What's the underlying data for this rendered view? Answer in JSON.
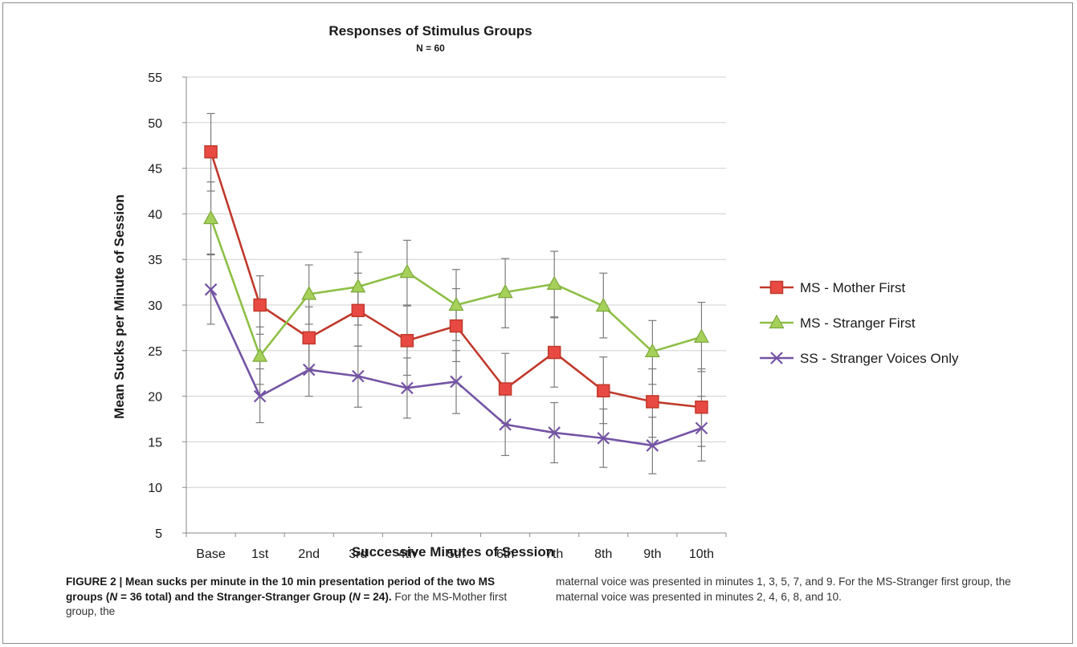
{
  "chart_data": {
    "type": "line",
    "title": "Responses of Stimulus Groups",
    "subtitle": "N = 60",
    "xlabel": "Successive Minutes of Session",
    "ylabel": "Mean Sucks per Minute of Session",
    "categories": [
      "Base",
      "1st",
      "2nd",
      "3rd",
      "4th",
      "5th",
      "6th",
      "7th",
      "8th",
      "9th",
      "10th"
    ],
    "ylim": [
      5,
      55
    ],
    "yticks": [
      5,
      10,
      15,
      20,
      25,
      30,
      35,
      40,
      45,
      50,
      55
    ],
    "grid": "horizontal",
    "legend_position": "right",
    "series": [
      {
        "name": "MS - Mother First",
        "color": "#c0392b",
        "marker": "square",
        "values": [
          46.8,
          30.0,
          26.4,
          29.4,
          26.1,
          27.7,
          20.8,
          24.8,
          20.6,
          19.4,
          18.8
        ],
        "error_low": [
          42.5,
          26.8,
          23.0,
          25.5,
          22.3,
          23.8,
          17.0,
          21.0,
          17.0,
          15.5,
          14.5
        ],
        "error_high": [
          51.0,
          33.2,
          29.8,
          33.5,
          29.9,
          31.8,
          24.7,
          28.7,
          24.3,
          23.0,
          23.0
        ]
      },
      {
        "name": "MS - Stranger First",
        "color": "#8dbf45",
        "marker": "triangle",
        "values": [
          39.5,
          24.4,
          31.2,
          32.0,
          33.6,
          30.0,
          31.4,
          32.3,
          29.9,
          24.9,
          26.5
        ],
        "error_low": [
          35.5,
          21.3,
          27.9,
          27.8,
          30.0,
          26.1,
          27.5,
          28.6,
          26.4,
          21.3,
          22.7
        ],
        "error_high": [
          43.5,
          27.6,
          34.4,
          35.8,
          37.1,
          33.9,
          35.1,
          35.9,
          33.5,
          28.3,
          30.3
        ]
      },
      {
        "name": "SS - Stranger Voices Only",
        "color": "#7453a4",
        "marker": "x",
        "values": [
          31.7,
          20.0,
          22.9,
          22.2,
          20.9,
          21.6,
          16.9,
          16.0,
          15.4,
          14.6,
          16.5
        ],
        "error_low": [
          27.9,
          17.1,
          20.0,
          18.8,
          17.6,
          18.1,
          13.5,
          12.7,
          12.2,
          11.5,
          12.9
        ],
        "error_high": [
          35.6,
          23.0,
          25.8,
          25.5,
          24.2,
          25.0,
          20.3,
          19.3,
          18.6,
          17.7,
          20.0
        ]
      }
    ]
  },
  "caption": {
    "label": "FIGURE 2 | Mean sucks per minute in the 10 min presentation period of the two MS groups (",
    "n1": "N",
    "n1_rest": " = 36 total) and the Stranger-Stranger Group (",
    "n2": "N",
    "n2_rest": " = 24)",
    "bold_end": ".",
    "text_left": " For the MS-Mother first group, the",
    "text_right": "maternal voice was presented in minutes 1, 3, 5, 7, and 9. For the MS-Stranger first group, the maternal voice was presented in minutes 2, 4, 6, 8, and 10."
  }
}
